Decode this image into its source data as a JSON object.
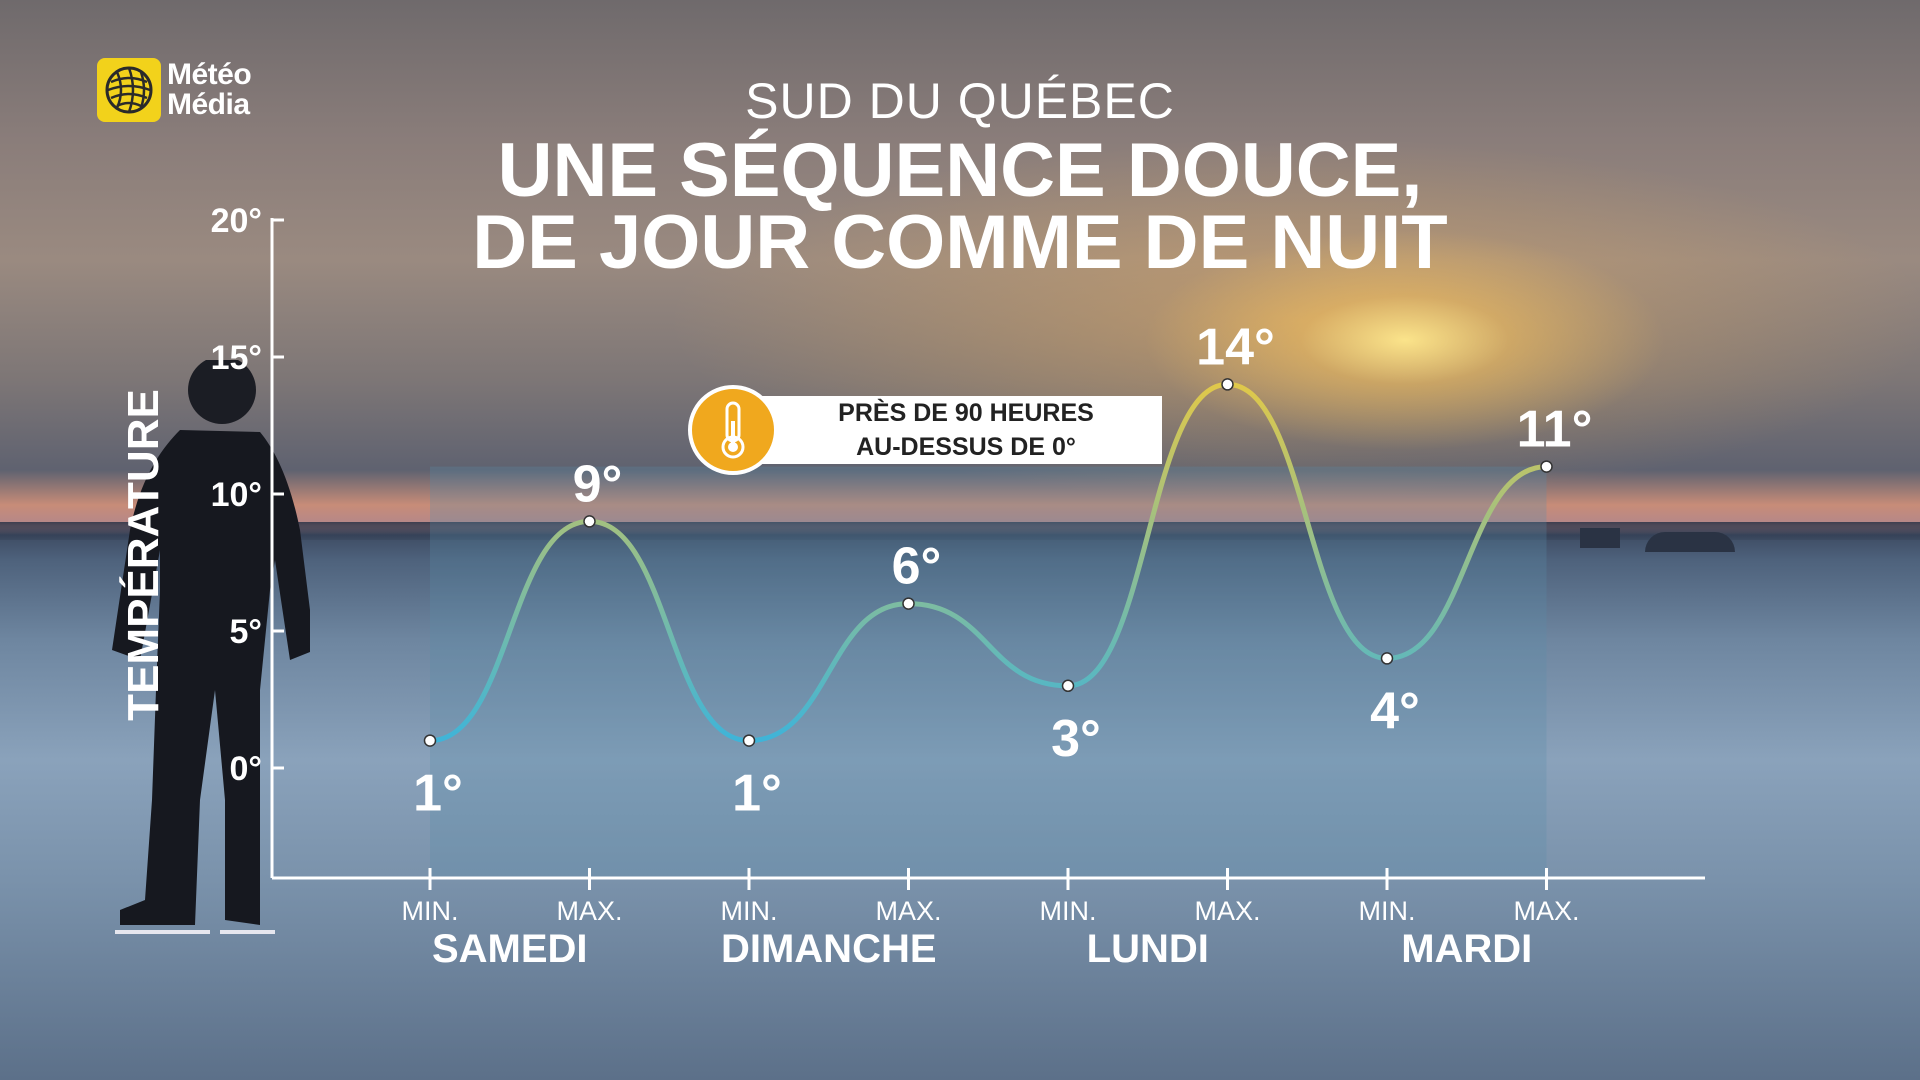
{
  "brand": {
    "line1": "Météo",
    "line2": "Média",
    "accent": "#f2d21b"
  },
  "header": {
    "subtitle": "SUD DU QUÉBEC",
    "title_line1": "UNE SÉQUENCE DOUCE,",
    "title_line2": "DE JOUR COMME DE NUIT"
  },
  "callout": {
    "icon": "thermometer-icon",
    "line1": "PRÈS DE 90 HEURES",
    "line2": "AU-DESSUS DE 0°",
    "color": "#f0a81e"
  },
  "chart_data": {
    "type": "line",
    "ylabel": "TEMPÉRATURE",
    "ylim": [
      0,
      20
    ],
    "yticks": [
      0,
      5,
      10,
      15,
      20
    ],
    "ytick_labels": [
      "0°",
      "5°",
      "10°",
      "15°",
      "20°"
    ],
    "categories": [
      "MIN.",
      "MAX.",
      "MIN.",
      "MAX.",
      "MIN.",
      "MAX.",
      "MIN.",
      "MAX."
    ],
    "days": [
      "SAMEDI",
      "DIMANCHE",
      "LUNDI",
      "MARDI"
    ],
    "values": [
      1,
      9,
      1,
      6,
      3,
      14,
      4,
      11
    ],
    "value_labels": [
      "1°",
      "9°",
      "1°",
      "6°",
      "3°",
      "14°",
      "4°",
      "11°"
    ],
    "line_colors": [
      "#3fb4d8",
      "#e0c84a"
    ]
  }
}
